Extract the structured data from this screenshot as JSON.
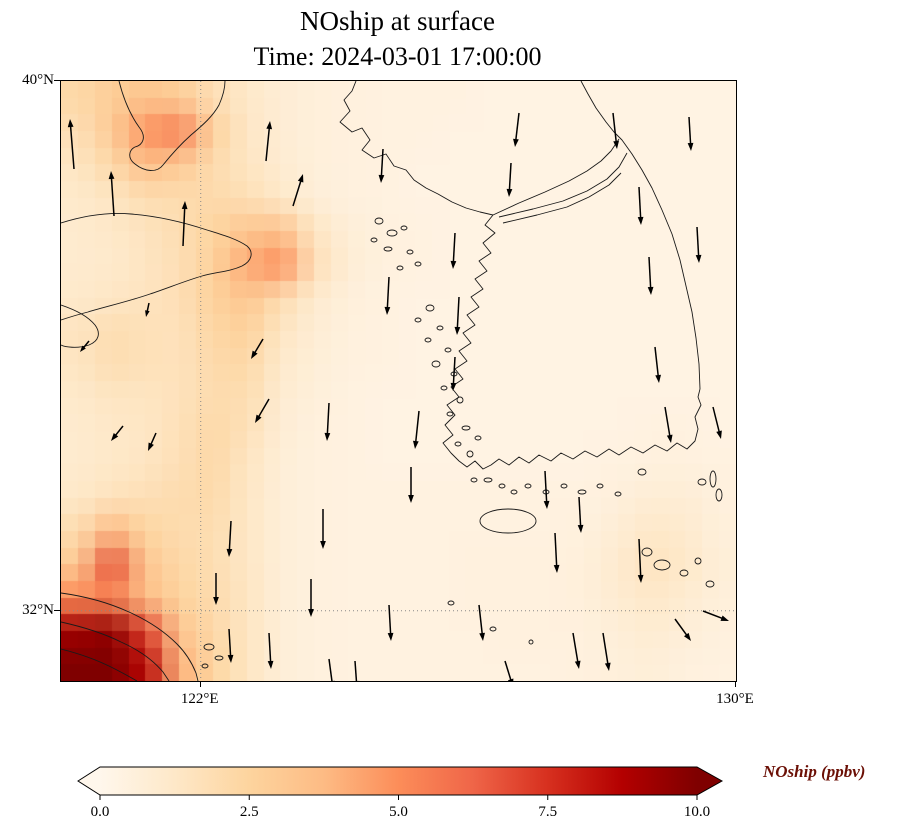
{
  "title": {
    "line1": "NOship at surface",
    "line2": "Time: 2024-03-01 17:00:00"
  },
  "axes": {
    "lat_ticks": [
      {
        "label": "40°N",
        "frac": 0.0
      },
      {
        "label": "32°N",
        "frac": 0.883
      }
    ],
    "lon_ticks": [
      {
        "label": "122°E",
        "frac": 0.207
      },
      {
        "label": "130°E",
        "frac": 1.0
      }
    ]
  },
  "colorbar": {
    "label": "NOship (ppbv)",
    "label_color": "#6b0f05",
    "ticks": [
      "0.0",
      "2.5",
      "5.0",
      "7.5",
      "10.0"
    ],
    "tick_values": [
      0,
      2.5,
      5,
      7.5,
      10
    ],
    "vmin": 0,
    "vmax": 10
  },
  "chart_data": {
    "type": "heatmap",
    "title": "NOship at surface",
    "subtitle": "Time: 2024-03-01 17:00:00",
    "variable": "NOship",
    "units": "ppbv",
    "lon_range": [
      119.9,
      130.1
    ],
    "lat_range": [
      30.9,
      40.0
    ],
    "vmin": 0,
    "vmax": 10,
    "colormap": {
      "name": "OrRd-like",
      "stops": [
        [
          0.0,
          "#fff7ec"
        ],
        [
          1.25,
          "#fee8c8"
        ],
        [
          2.5,
          "#fdd49e"
        ],
        [
          3.75,
          "#fdbb84"
        ],
        [
          5.0,
          "#fc8d59"
        ],
        [
          6.25,
          "#ef6548"
        ],
        [
          7.5,
          "#d7301f"
        ],
        [
          8.75,
          "#b30000"
        ],
        [
          10.0,
          "#7f0000"
        ]
      ]
    },
    "grid": {
      "nx": 20,
      "ny": 18,
      "note": "values in ppbv, rows north to south, cols west to east",
      "values": [
        [
          2.2,
          2.8,
          3.2,
          2.8,
          1.8,
          1.2,
          0.8,
          0.6,
          0.5,
          0.4,
          0.4,
          0.4,
          0.3,
          0.3,
          0.3,
          0.3,
          0.3,
          0.3,
          0.3,
          0.3
        ],
        [
          1.8,
          3.0,
          4.8,
          5.5,
          2.6,
          1.3,
          0.8,
          0.6,
          0.5,
          0.4,
          0.4,
          0.3,
          0.3,
          0.3,
          0.3,
          0.3,
          0.3,
          0.3,
          0.3,
          0.3
        ],
        [
          1.4,
          2.2,
          3.6,
          3.0,
          2.0,
          1.4,
          0.9,
          0.6,
          0.5,
          0.4,
          0.3,
          0.3,
          0.3,
          0.3,
          0.3,
          0.3,
          0.3,
          0.3,
          0.3,
          0.3
        ],
        [
          1.1,
          1.4,
          1.9,
          2.0,
          2.1,
          1.8,
          1.2,
          0.7,
          0.5,
          0.4,
          0.3,
          0.3,
          0.3,
          0.3,
          0.3,
          0.3,
          0.3,
          0.3,
          0.3,
          0.3
        ],
        [
          1.0,
          1.2,
          1.5,
          1.9,
          2.4,
          3.2,
          3.4,
          1.4,
          0.7,
          0.5,
          0.4,
          0.3,
          0.3,
          0.3,
          0.3,
          0.3,
          0.3,
          0.3,
          0.3,
          0.3
        ],
        [
          1.0,
          1.1,
          1.4,
          1.8,
          2.6,
          4.2,
          5.0,
          1.8,
          0.8,
          0.5,
          0.4,
          0.3,
          0.3,
          0.3,
          0.3,
          0.3,
          0.3,
          0.3,
          0.3,
          0.3
        ],
        [
          1.1,
          1.3,
          1.5,
          1.8,
          2.6,
          3.2,
          2.0,
          1.0,
          0.6,
          0.4,
          0.3,
          0.3,
          0.3,
          0.3,
          0.3,
          0.3,
          0.3,
          0.3,
          0.3,
          0.3
        ],
        [
          1.5,
          1.9,
          1.7,
          1.6,
          2.3,
          2.6,
          1.4,
          0.8,
          0.5,
          0.4,
          0.3,
          0.3,
          0.3,
          0.3,
          0.3,
          0.3,
          0.3,
          0.3,
          0.3,
          0.3
        ],
        [
          1.4,
          1.9,
          1.7,
          1.6,
          2.1,
          2.2,
          1.1,
          0.7,
          0.5,
          0.4,
          0.3,
          0.3,
          0.3,
          0.3,
          0.3,
          0.3,
          0.3,
          0.3,
          0.3,
          0.3
        ],
        [
          1.1,
          1.4,
          1.4,
          1.6,
          2.0,
          1.9,
          0.9,
          0.6,
          0.4,
          0.3,
          0.3,
          0.3,
          0.3,
          0.3,
          0.3,
          0.3,
          0.3,
          0.3,
          0.3,
          0.3
        ],
        [
          1.0,
          1.2,
          1.3,
          1.7,
          2.2,
          1.7,
          0.8,
          0.5,
          0.4,
          0.3,
          0.3,
          0.3,
          0.3,
          0.3,
          0.3,
          0.3,
          0.3,
          0.4,
          0.4,
          0.3
        ],
        [
          1.0,
          1.2,
          1.4,
          1.8,
          2.2,
          1.4,
          0.7,
          0.5,
          0.4,
          0.3,
          0.3,
          0.3,
          0.3,
          0.3,
          0.3,
          0.3,
          0.4,
          0.5,
          0.5,
          0.4
        ],
        [
          1.2,
          1.6,
          1.8,
          2.0,
          2.1,
          1.3,
          0.7,
          0.5,
          0.4,
          0.4,
          0.4,
          0.4,
          0.4,
          0.4,
          0.4,
          0.4,
          0.6,
          0.8,
          0.8,
          0.5
        ],
        [
          2.0,
          3.8,
          2.4,
          2.0,
          1.9,
          1.3,
          0.7,
          0.5,
          0.4,
          0.4,
          0.4,
          0.4,
          0.4,
          0.4,
          0.4,
          0.5,
          0.8,
          1.2,
          1.0,
          0.6
        ],
        [
          3.0,
          6.8,
          3.2,
          2.2,
          1.9,
          1.3,
          0.7,
          0.5,
          0.4,
          0.4,
          0.4,
          0.4,
          0.5,
          0.5,
          0.5,
          0.6,
          1.0,
          1.5,
          1.2,
          0.7
        ],
        [
          5.0,
          5.2,
          3.6,
          2.5,
          2.0,
          1.4,
          0.7,
          0.5,
          0.4,
          0.4,
          0.4,
          0.4,
          0.5,
          0.5,
          0.5,
          0.6,
          0.9,
          1.2,
          0.9,
          0.6
        ],
        [
          9.2,
          9.6,
          7.0,
          3.2,
          2.2,
          1.4,
          0.7,
          0.5,
          0.4,
          0.4,
          0.4,
          0.4,
          0.4,
          0.5,
          0.5,
          0.5,
          0.7,
          0.9,
          0.7,
          0.5
        ],
        [
          10.0,
          10.0,
          8.6,
          4.0,
          2.4,
          1.4,
          0.7,
          0.5,
          0.4,
          0.4,
          0.4,
          0.4,
          0.4,
          0.4,
          0.4,
          0.5,
          0.6,
          0.7,
          0.5,
          0.4
        ]
      ]
    },
    "quiver": {
      "color": "#000000",
      "arrows": [
        [
          13,
          88,
          -4,
          -50
        ],
        [
          53,
          135,
          -3,
          -45
        ],
        [
          122,
          165,
          2,
          -45
        ],
        [
          205,
          80,
          4,
          -40
        ],
        [
          232,
          125,
          10,
          -32
        ],
        [
          88,
          222,
          -3,
          14
        ],
        [
          28,
          260,
          -9,
          11
        ],
        [
          62,
          345,
          -12,
          15
        ],
        [
          95,
          352,
          -8,
          18
        ],
        [
          208,
          318,
          -14,
          24
        ],
        [
          202,
          258,
          -12,
          20
        ],
        [
          170,
          440,
          -2,
          36
        ],
        [
          155,
          492,
          0,
          32
        ],
        [
          168,
          548,
          2,
          34
        ],
        [
          208,
          552,
          2,
          36
        ],
        [
          268,
          322,
          -2,
          38
        ],
        [
          262,
          428,
          0,
          40
        ],
        [
          250,
          498,
          0,
          38
        ],
        [
          268,
          578,
          4,
          30
        ],
        [
          322,
          68,
          -2,
          34
        ],
        [
          328,
          196,
          -2,
          38
        ],
        [
          358,
          330,
          -4,
          38
        ],
        [
          350,
          386,
          0,
          36
        ],
        [
          328,
          524,
          2,
          36
        ],
        [
          294,
          580,
          2,
          28
        ],
        [
          394,
          152,
          -2,
          36
        ],
        [
          398,
          216,
          -2,
          38
        ],
        [
          394,
          276,
          -2,
          34
        ],
        [
          418,
          524,
          4,
          36
        ],
        [
          444,
          580,
          8,
          26
        ],
        [
          458,
          32,
          -4,
          34
        ],
        [
          450,
          82,
          -2,
          34
        ],
        [
          484,
          390,
          2,
          38
        ],
        [
          494,
          452,
          2,
          40
        ],
        [
          518,
          416,
          2,
          36
        ],
        [
          512,
          552,
          6,
          36
        ],
        [
          542,
          552,
          6,
          38
        ],
        [
          552,
          32,
          4,
          36
        ],
        [
          578,
          106,
          2,
          38
        ],
        [
          588,
          176,
          2,
          38
        ],
        [
          594,
          266,
          4,
          36
        ],
        [
          578,
          458,
          2,
          44
        ],
        [
          604,
          326,
          6,
          36
        ],
        [
          628,
          36,
          2,
          34
        ],
        [
          636,
          146,
          2,
          36
        ],
        [
          652,
          326,
          8,
          32
        ],
        [
          614,
          538,
          16,
          22
        ],
        [
          642,
          530,
          26,
          10
        ]
      ]
    },
    "coastlines": {
      "stroke": "#1a1a1a",
      "paths": [
        "M 58,0 C 62,16 68,32 78,46 C 86,56 82,64 74,66 C 68,69 66,77 74,83 C 84,91 96,92 102,84 C 110,74 120,63 130,54 C 142,44 152,35 158,24 C 162,15 164,6 164,0",
        "M 0,142 C 22,135 46,131 70,133 C 96,135 122,141 146,149 C 162,154 176,158 186,165 C 193,171 191,180 181,185 C 168,191 154,191 141,195 C 124,200 107,207 89,213 C 69,220 47,225 27,231 C 15,234 6,237 0,239",
        "M 0,224 C 12,228 26,234 34,244 C 40,252 38,260 28,264 C 16,268 4,266 0,264",
        "M 0,512 C 22,515 46,521 68,531 C 88,540 104,551 116,563 C 125,572 131,582 135,592 L 137,600",
        "M 0,541 C 18,545 40,551 60,561 C 78,569 92,579 102,591 L 108,600",
        "M 0,568 C 16,572 34,578 50,586 C 60,591 69,596 76,600",
        "M 295,0 L 291,10 L 283,19 L 289,30 L 279,41 L 291,51 L 301,47 L 309,59 L 301,69 L 313,77 L 325,73 L 333,85 L 345,89 L 353,99 L 365,107 L 377,113 L 391,121 L 405,127 L 419,131 L 432,134",
        "M 432,134 L 424,144 L 434,152 L 422,162 L 430,172 L 418,180 L 426,190 L 414,198 L 422,208 L 410,216 L 418,226 L 406,234 L 414,244 L 402,252 L 410,262 L 398,270 L 406,280 L 394,288 L 402,298 L 390,306 L 398,316 L 386,324 L 394,334 L 384,344 L 392,354 L 382,362 L 390,372 L 398,380 L 406,386 L 414,380 L 422,388 L 430,384 L 438,378 L 448,384 L 458,376 L 468,382 L 478,374 L 490,380 L 500,372 L 512,378 L 524,370 L 536,376 L 548,368 L 558,374 L 570,366 L 582,372 L 594,364 L 606,370 L 616,362 L 626,368 L 634,360 L 637,348 L 634,336 L 640,324 L 637,316 L 639,308",
        "M 520,0 L 527,13 L 535,27 L 545,41 L 553,51 L 561,59 L 571,73 L 581,89 L 591,107 L 601,129 L 611,153 L 619,179 L 625,205 L 631,231 L 635,257 L 638,283 L 639,308",
        "M 432,134 L 458,122 L 484,111 L 508,100 L 526,90 L 540,80 L 550,70 L 558,58",
        "M 438,136 L 472,128 L 502,120 L 526,110 L 546,98 L 558,86 L 566,72",
        "M 442,142 L 476,134 L 506,126 L 528,116 L 548,104 L 560,92"
      ],
      "islands": [
        [
          318,
          140,
          4,
          3
        ],
        [
          331,
          152,
          5,
          3
        ],
        [
          313,
          159,
          3,
          2
        ],
        [
          343,
          147,
          3,
          2
        ],
        [
          327,
          168,
          4,
          2
        ],
        [
          349,
          171,
          3,
          2
        ],
        [
          357,
          183,
          3,
          2
        ],
        [
          339,
          187,
          3,
          2
        ],
        [
          369,
          227,
          4,
          3
        ],
        [
          357,
          239,
          3,
          2
        ],
        [
          379,
          247,
          3,
          2
        ],
        [
          367,
          259,
          3,
          2
        ],
        [
          387,
          269,
          3,
          2
        ],
        [
          375,
          283,
          4,
          3
        ],
        [
          393,
          293,
          3,
          2
        ],
        [
          383,
          307,
          3,
          2
        ],
        [
          399,
          319,
          3,
          3
        ],
        [
          389,
          333,
          3,
          2
        ],
        [
          405,
          347,
          4,
          2
        ],
        [
          417,
          357,
          3,
          2
        ],
        [
          397,
          363,
          3,
          2
        ],
        [
          409,
          373,
          3,
          3
        ],
        [
          427,
          399,
          4,
          2
        ],
        [
          441,
          405,
          3,
          2
        ],
        [
          413,
          399,
          3,
          2
        ],
        [
          453,
          411,
          3,
          2
        ],
        [
          467,
          405,
          3,
          2
        ],
        [
          485,
          411,
          3,
          2
        ],
        [
          503,
          405,
          3,
          2
        ],
        [
          521,
          411,
          4,
          2
        ],
        [
          539,
          405,
          3,
          2
        ],
        [
          557,
          413,
          3,
          2
        ],
        [
          581,
          391,
          4,
          3
        ],
        [
          447,
          440,
          28,
          12
        ],
        [
          586,
          471,
          5,
          4
        ],
        [
          601,
          484,
          8,
          5
        ],
        [
          623,
          492,
          4,
          3
        ],
        [
          637,
          480,
          3,
          3
        ],
        [
          649,
          503,
          4,
          3
        ],
        [
          641,
          401,
          4,
          3
        ],
        [
          652,
          398,
          3,
          8
        ],
        [
          658,
          414,
          3,
          6
        ],
        [
          148,
          566,
          5,
          3
        ],
        [
          158,
          577,
          4,
          2
        ],
        [
          144,
          585,
          3,
          2
        ],
        [
          390,
          522,
          3,
          2
        ],
        [
          432,
          548,
          3,
          2
        ],
        [
          470,
          561,
          2,
          2
        ]
      ]
    },
    "gridlines": {
      "style": "dotted",
      "color": "#888888"
    }
  }
}
